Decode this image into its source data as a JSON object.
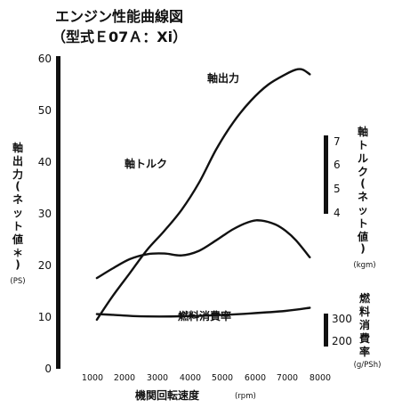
{
  "chart_data": {
    "type": "line",
    "title_lines": [
      "エンジン性能曲線図",
      "（型式Ｅ07Ａ：Xi）"
    ],
    "xlabel": "機関回転速度",
    "xunit": "(rpm)",
    "x_ticks": [
      1000,
      2000,
      3000,
      4000,
      5000,
      6000,
      7000,
      8000
    ],
    "xlim": [
      500,
      8000
    ],
    "left_axis": {
      "label_chars": [
        "軸",
        "出",
        "力",
        "(",
        "ネ",
        "ッ",
        "ト",
        "値",
        "＊",
        ")"
      ],
      "unit": "(PS)",
      "ticks": [
        0,
        10,
        20,
        30,
        40,
        50,
        60
      ],
      "lim": [
        0,
        60
      ]
    },
    "torque_axis": {
      "label_chars": [
        "軸",
        "ト",
        "ル",
        "ク",
        "(",
        "ネ",
        "ッ",
        "ト",
        "値",
        ")"
      ],
      "unit": "(kgm)",
      "ticks": [
        4,
        5,
        6,
        7
      ],
      "lim": [
        2.1,
        10.3
      ]
    },
    "fuel_axis": {
      "label_chars": [
        "燃",
        "料",
        "消",
        "費",
        "率"
      ],
      "unit": "(g/PSh)",
      "ticks": [
        200,
        300
      ],
      "lim": [
        -86,
        1637
      ]
    },
    "series": [
      {
        "name": "軸出力",
        "axis": "left",
        "x": [
          1550,
          2000,
          2500,
          3000,
          3500,
          4000,
          4500,
          5000,
          5500,
          6000,
          6500,
          7000,
          7300,
          7500,
          7700
        ],
        "values": [
          9.5,
          14.0,
          18.5,
          23.0,
          26.7,
          30.8,
          36.0,
          42.5,
          47.8,
          51.9,
          55.0,
          57.0,
          57.9,
          57.9,
          57.0
        ]
      },
      {
        "name": "軸トルク",
        "axis": "torque",
        "x": [
          1550,
          2000,
          2500,
          3000,
          3500,
          4000,
          4500,
          5000,
          5500,
          6000,
          6300,
          6700,
          7000,
          7300,
          7700
        ],
        "values": [
          4.5,
          4.75,
          5.0,
          5.13,
          5.15,
          5.1,
          5.22,
          5.5,
          5.8,
          6.0,
          6.02,
          5.92,
          5.75,
          5.5,
          5.05
        ]
      },
      {
        "name": "燃料消費率",
        "axis": "fuel",
        "x": [
          1550,
          2000,
          2500,
          3000,
          4000,
          5000,
          6000,
          7000,
          7700
        ],
        "values": [
          218,
          214,
          208,
          205,
          206,
          212,
          222,
          236,
          253
        ]
      }
    ],
    "grid": false,
    "legend": "labels on curves"
  }
}
